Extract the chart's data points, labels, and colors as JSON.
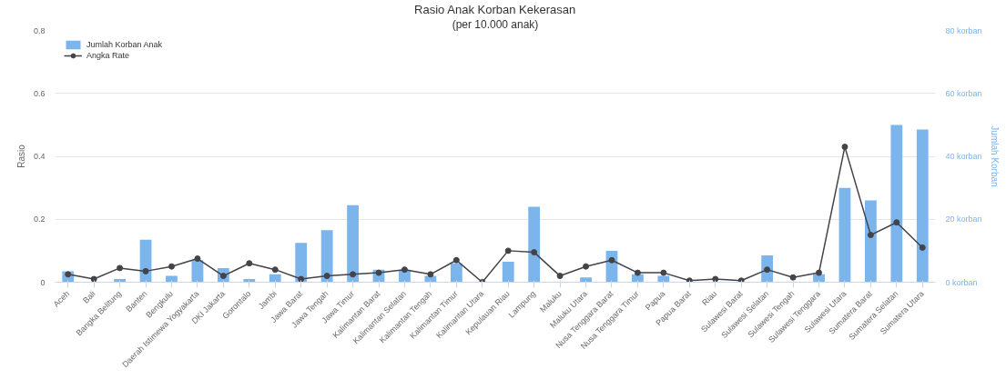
{
  "chart_data": {
    "type": "bar",
    "title": "Rasio Anak Korban Kekerasan",
    "subtitle": "(per 10.000 anak)",
    "ylabel": "Rasio",
    "y2label": "Jumlah Korban",
    "categories": [
      "Aceh",
      "Bali",
      "Bangka Belitung",
      "Banten",
      "Bengkulu",
      "Daerah Istimewa Yogyakarta",
      "DKI Jakarta",
      "Gorontalo",
      "Jambi",
      "Jawa Barat",
      "Jawa Tengah",
      "Jawa Timur",
      "Kalimantan Barat",
      "Kalimantan Selatan",
      "Kalimantan Tengah",
      "Kalimantan Timur",
      "Kalimantan Utara",
      "Kepulauan Riau",
      "Lampung",
      "Maluku",
      "Maluku Utara",
      "Nusa Tenggara Barat",
      "Nusa Tenggara Timur",
      "Papua",
      "Papua Barat",
      "Riau",
      "Sulawesi Barat",
      "Sulawesi Selatan",
      "Sulawesi Tengah",
      "Sulawesi Tenggara",
      "Sulawesi Utara",
      "Sumatera Barat",
      "Sumatera Selatan",
      "Sumatera Utara"
    ],
    "series": [
      {
        "name": "Jumlah Korban Anak",
        "axis": "y2",
        "color": "#7cb5ec",
        "values": [
          3.5,
          0,
          1,
          13.5,
          2,
          7,
          4.5,
          1,
          2.5,
          12.5,
          16.5,
          24.5,
          4,
          4,
          2,
          6,
          0,
          6.5,
          24,
          0,
          1.5,
          10,
          2.5,
          2,
          0,
          0,
          0,
          8.5,
          0,
          2.5,
          30,
          26,
          50,
          48.5
        ]
      },
      {
        "name": "Angka Rate",
        "type": "line",
        "axis": "y",
        "color": "#434348",
        "values": [
          0.025,
          0.01,
          0.045,
          0.035,
          0.05,
          0.075,
          0.02,
          0.06,
          0.04,
          0.01,
          0.02,
          0.025,
          0.03,
          0.04,
          0.025,
          0.07,
          0,
          0.1,
          0.095,
          0.02,
          0.05,
          0.07,
          0.03,
          0.03,
          0.005,
          0.01,
          0.005,
          0.04,
          0.015,
          0.03,
          0.43,
          0.15,
          0.19,
          0.11
        ]
      }
    ],
    "ylim": [
      0,
      0.8
    ],
    "yticks": [
      0,
      0.2,
      0.4,
      0.6,
      0.8
    ],
    "y2lim": [
      0,
      80
    ],
    "y2ticks": [
      {
        "value": 0,
        "label": "0 korban"
      },
      {
        "value": 20,
        "label": "20 korban"
      },
      {
        "value": 40,
        "label": "40 korban"
      },
      {
        "value": 60,
        "label": "60 korban"
      },
      {
        "value": 80,
        "label": "80 korban"
      }
    ],
    "grid": "y",
    "legend": "top left",
    "marker": "circle",
    "line_style": "solid"
  }
}
